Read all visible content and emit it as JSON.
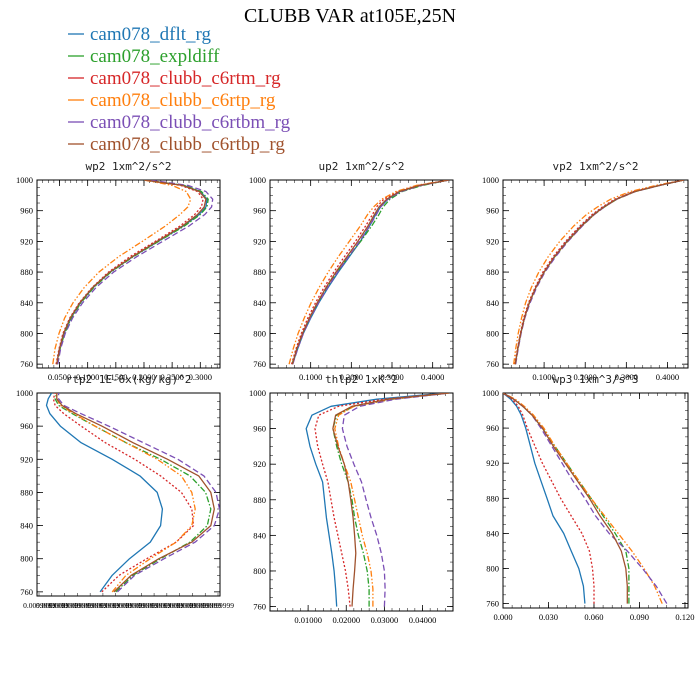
{
  "title": "CLUBB VAR at105E,25N",
  "legend": [
    {
      "name": "cam078_dflt_rg",
      "color": "#1f77b4",
      "dash": "solid"
    },
    {
      "name": "cam078_expldiff",
      "color": "#2ca02c",
      "dash": "dashdot"
    },
    {
      "name": "cam078_clubb_c6rtm_rg",
      "color": "#d62728",
      "dash": "dotted"
    },
    {
      "name": "cam078_clubb_c6rtp_rg",
      "color": "#ff7f0e",
      "dash": "dashdotdot"
    },
    {
      "name": "cam078_clubb_c6rtbm_rg",
      "color": "#7b4fb5",
      "dash": "dashed"
    },
    {
      "name": "cam078_clubb_c6rtbp_rg",
      "color": "#a0522d",
      "dash": "solid"
    }
  ],
  "chart_data": [
    {
      "type": "line",
      "title": "wp2  1xm^2/s^2",
      "xlim": [
        0.01,
        0.335
      ],
      "ylim": [
        1000,
        755
      ],
      "xticks": [
        0.05,
        0.1,
        0.15,
        0.2,
        0.25,
        0.3
      ],
      "xticklabels": [
        "0.0500",
        "0.1000",
        "0.1500",
        "0.2000",
        "0.2500",
        "0.3000"
      ],
      "yticks": [
        760,
        800,
        840,
        880,
        920,
        960,
        1000
      ],
      "y": [
        760,
        780,
        800,
        820,
        840,
        860,
        880,
        900,
        920,
        940,
        955,
        965,
        975,
        985,
        993,
        1000
      ],
      "series": [
        {
          "name": "cam078_dflt_rg",
          "x": [
            0.045,
            0.05,
            0.058,
            0.07,
            0.087,
            0.11,
            0.14,
            0.18,
            0.225,
            0.27,
            0.298,
            0.31,
            0.312,
            0.3,
            0.27,
            0.2
          ]
        },
        {
          "name": "cam078_expldiff",
          "x": [
            0.046,
            0.051,
            0.059,
            0.071,
            0.088,
            0.111,
            0.141,
            0.181,
            0.226,
            0.272,
            0.3,
            0.312,
            0.314,
            0.302,
            0.272,
            0.2
          ]
        },
        {
          "name": "cam078_clubb_c6rtm_rg",
          "x": [
            0.044,
            0.049,
            0.056,
            0.068,
            0.085,
            0.108,
            0.137,
            0.175,
            0.22,
            0.264,
            0.29,
            0.302,
            0.305,
            0.295,
            0.265,
            0.2
          ]
        },
        {
          "name": "cam078_clubb_c6rtp_rg",
          "x": [
            0.038,
            0.042,
            0.049,
            0.059,
            0.074,
            0.094,
            0.12,
            0.155,
            0.197,
            0.238,
            0.264,
            0.278,
            0.283,
            0.275,
            0.25,
            0.2
          ]
        },
        {
          "name": "cam078_clubb_c6rtbm_rg",
          "x": [
            0.047,
            0.052,
            0.06,
            0.073,
            0.091,
            0.115,
            0.146,
            0.187,
            0.233,
            0.28,
            0.308,
            0.32,
            0.322,
            0.31,
            0.278,
            0.21
          ]
        },
        {
          "name": "cam078_clubb_c6rtbp_rg",
          "x": [
            0.045,
            0.05,
            0.057,
            0.069,
            0.086,
            0.109,
            0.139,
            0.179,
            0.223,
            0.268,
            0.295,
            0.307,
            0.31,
            0.298,
            0.268,
            0.2
          ]
        }
      ]
    },
    {
      "type": "line",
      "title": "up2  1xm^2/s^2",
      "xlim": [
        0.0,
        0.45
      ],
      "ylim": [
        1000,
        755
      ],
      "xticks": [
        0.1,
        0.2,
        0.3,
        0.4
      ],
      "xticklabels": [
        "0.1000",
        "0.2000",
        "0.3000",
        "0.4000"
      ],
      "yticks": [
        760,
        800,
        840,
        880,
        920,
        960,
        1000
      ],
      "y": [
        760,
        780,
        800,
        820,
        840,
        860,
        880,
        900,
        920,
        940,
        955,
        965,
        975,
        985,
        993,
        1000
      ],
      "series": [
        {
          "name": "cam078_dflt_rg",
          "x": [
            0.055,
            0.068,
            0.082,
            0.1,
            0.12,
            0.143,
            0.168,
            0.195,
            0.222,
            0.245,
            0.26,
            0.272,
            0.29,
            0.32,
            0.37,
            0.44
          ]
        },
        {
          "name": "cam078_expldiff",
          "x": [
            0.054,
            0.066,
            0.08,
            0.097,
            0.117,
            0.14,
            0.165,
            0.193,
            0.223,
            0.25,
            0.268,
            0.278,
            0.295,
            0.325,
            0.375,
            0.44
          ]
        },
        {
          "name": "cam078_clubb_c6rtm_rg",
          "x": [
            0.053,
            0.064,
            0.077,
            0.093,
            0.112,
            0.133,
            0.157,
            0.183,
            0.21,
            0.235,
            0.252,
            0.262,
            0.28,
            0.315,
            0.365,
            0.44
          ]
        },
        {
          "name": "cam078_clubb_c6rtp_rg",
          "x": [
            0.047,
            0.057,
            0.069,
            0.084,
            0.101,
            0.121,
            0.143,
            0.168,
            0.195,
            0.222,
            0.24,
            0.255,
            0.275,
            0.31,
            0.36,
            0.44
          ]
        },
        {
          "name": "cam078_clubb_c6rtbm_rg",
          "x": [
            0.056,
            0.068,
            0.082,
            0.099,
            0.119,
            0.142,
            0.166,
            0.193,
            0.22,
            0.245,
            0.262,
            0.272,
            0.29,
            0.322,
            0.372,
            0.44
          ]
        },
        {
          "name": "cam078_clubb_c6rtbp_rg",
          "x": [
            0.055,
            0.066,
            0.08,
            0.097,
            0.116,
            0.138,
            0.162,
            0.189,
            0.216,
            0.241,
            0.257,
            0.268,
            0.287,
            0.318,
            0.368,
            0.44
          ]
        }
      ]
    },
    {
      "type": "line",
      "title": "vp2  1xm^2/s^2",
      "xlim": [
        0.0,
        0.45
      ],
      "ylim": [
        1000,
        755
      ],
      "xticks": [
        0.1,
        0.2,
        0.3,
        0.4
      ],
      "xticklabels": [
        "0.1000",
        "0.2000",
        "0.3000",
        "0.4000"
      ],
      "yticks": [
        760,
        800,
        840,
        880,
        920,
        960,
        1000
      ],
      "y": [
        760,
        780,
        800,
        820,
        840,
        860,
        880,
        900,
        920,
        940,
        955,
        965,
        975,
        985,
        993,
        1000
      ],
      "series": [
        {
          "name": "cam078_dflt_rg",
          "x": [
            0.03,
            0.036,
            0.043,
            0.052,
            0.064,
            0.08,
            0.1,
            0.125,
            0.155,
            0.19,
            0.22,
            0.245,
            0.275,
            0.32,
            0.38,
            0.44
          ]
        },
        {
          "name": "cam078_expldiff",
          "x": [
            0.03,
            0.036,
            0.043,
            0.052,
            0.064,
            0.08,
            0.1,
            0.126,
            0.157,
            0.192,
            0.222,
            0.247,
            0.277,
            0.322,
            0.382,
            0.44
          ]
        },
        {
          "name": "cam078_clubb_c6rtm_rg",
          "x": [
            0.029,
            0.035,
            0.042,
            0.05,
            0.062,
            0.078,
            0.097,
            0.122,
            0.152,
            0.187,
            0.217,
            0.242,
            0.272,
            0.318,
            0.378,
            0.44
          ]
        },
        {
          "name": "cam078_clubb_c6rtp_rg",
          "x": [
            0.026,
            0.031,
            0.037,
            0.045,
            0.055,
            0.069,
            0.087,
            0.11,
            0.138,
            0.172,
            0.203,
            0.23,
            0.262,
            0.31,
            0.372,
            0.44
          ]
        },
        {
          "name": "cam078_clubb_c6rtbm_rg",
          "x": [
            0.031,
            0.037,
            0.044,
            0.053,
            0.066,
            0.082,
            0.102,
            0.128,
            0.158,
            0.193,
            0.222,
            0.247,
            0.277,
            0.322,
            0.382,
            0.44
          ]
        },
        {
          "name": "cam078_clubb_c6rtbp_rg",
          "x": [
            0.03,
            0.036,
            0.043,
            0.052,
            0.064,
            0.08,
            0.1,
            0.125,
            0.156,
            0.191,
            0.221,
            0.246,
            0.276,
            0.321,
            0.381,
            0.44
          ]
        }
      ]
    },
    {
      "type": "line",
      "title": "rtp2  1E-6x(kg/kg)^2",
      "xlim": [
        0.0099999,
        0.00999999
      ],
      "ylim": [
        1000,
        755
      ],
      "xticklabels": [
        "0.0099999",
        "0.0099999",
        "0.0099999",
        "0.0099999",
        "0.0099999",
        "0.0099999",
        "0.0099999",
        "0.0099999",
        "0.0099999",
        "0.0099999",
        "0.0099999",
        "0.0099999",
        "0.0099999",
        "0.0099999",
        "0.0099999"
      ],
      "yticks": [
        760,
        800,
        840,
        880,
        920,
        960,
        1000
      ],
      "y": [
        760,
        780,
        800,
        820,
        840,
        860,
        880,
        900,
        920,
        940,
        960,
        975,
        985,
        993,
        1000
      ],
      "series": [
        {
          "name": "cam078_dflt_rg",
          "x": [
            0.33,
            0.4,
            0.5,
            0.62,
            0.68,
            0.69,
            0.66,
            0.56,
            0.4,
            0.22,
            0.1,
            0.04,
            0.02,
            0.03,
            0.05
          ]
        },
        {
          "name": "cam078_expldiff",
          "x": [
            0.42,
            0.52,
            0.68,
            0.85,
            0.95,
            0.97,
            0.94,
            0.85,
            0.68,
            0.48,
            0.3,
            0.17,
            0.09,
            0.07,
            0.08
          ]
        },
        {
          "name": "cam078_clubb_c6rtm_rg",
          "x": [
            0.34,
            0.44,
            0.6,
            0.77,
            0.87,
            0.86,
            0.8,
            0.68,
            0.53,
            0.36,
            0.22,
            0.12,
            0.07,
            0.06,
            0.07
          ]
        },
        {
          "name": "cam078_clubb_c6rtp_rg",
          "x": [
            0.4,
            0.48,
            0.62,
            0.77,
            0.86,
            0.88,
            0.86,
            0.8,
            0.66,
            0.48,
            0.3,
            0.18,
            0.1,
            0.08,
            0.08
          ]
        },
        {
          "name": "cam078_clubb_c6rtbm_rg",
          "x": [
            0.43,
            0.53,
            0.7,
            0.88,
            0.99,
            1.02,
            1.0,
            0.93,
            0.78,
            0.58,
            0.38,
            0.22,
            0.12,
            0.09,
            0.09
          ]
        },
        {
          "name": "cam078_clubb_c6rtbp_rg",
          "x": [
            0.41,
            0.51,
            0.67,
            0.86,
            0.97,
            0.99,
            0.97,
            0.9,
            0.72,
            0.52,
            0.34,
            0.19,
            0.11,
            0.08,
            0.08
          ]
        }
      ]
    },
    {
      "type": "line",
      "title": "thlp2  1xK^2",
      "xlim": [
        0.0,
        0.048
      ],
      "ylim": [
        1000,
        755
      ],
      "xticks": [
        0.01,
        0.02,
        0.03,
        0.04
      ],
      "xticklabels": [
        "0.01000",
        "0.02000",
        "0.03000",
        "0.04000"
      ],
      "yticks": [
        760,
        800,
        840,
        880,
        920,
        960,
        1000
      ],
      "y": [
        760,
        780,
        800,
        820,
        840,
        860,
        880,
        900,
        920,
        940,
        960,
        975,
        985,
        993,
        1000
      ],
      "series": [
        {
          "name": "cam078_dflt_rg",
          "x": [
            0.0175,
            0.0172,
            0.0168,
            0.0162,
            0.0155,
            0.0148,
            0.0143,
            0.0138,
            0.012,
            0.0105,
            0.0095,
            0.011,
            0.016,
            0.028,
            0.046
          ]
        },
        {
          "name": "cam078_expldiff",
          "x": [
            0.026,
            0.026,
            0.0255,
            0.0245,
            0.0232,
            0.0222,
            0.0215,
            0.0205,
            0.0188,
            0.0175,
            0.0165,
            0.0175,
            0.022,
            0.032,
            0.047
          ]
        },
        {
          "name": "cam078_clubb_c6rtm_rg",
          "x": [
            0.021,
            0.0205,
            0.0198,
            0.0188,
            0.0178,
            0.0168,
            0.016,
            0.0152,
            0.0138,
            0.0125,
            0.0118,
            0.0128,
            0.018,
            0.03,
            0.047
          ]
        },
        {
          "name": "cam078_clubb_c6rtp_rg",
          "x": [
            0.027,
            0.027,
            0.0265,
            0.0255,
            0.0242,
            0.0232,
            0.0222,
            0.0212,
            0.0195,
            0.018,
            0.017,
            0.018,
            0.022,
            0.032,
            0.047
          ]
        },
        {
          "name": "cam078_clubb_c6rtbm_rg",
          "x": [
            0.03,
            0.0302,
            0.03,
            0.0292,
            0.028,
            0.0265,
            0.0252,
            0.024,
            0.022,
            0.0202,
            0.019,
            0.0195,
            0.0235,
            0.033,
            0.047
          ]
        },
        {
          "name": "cam078_clubb_c6rtbp_rg",
          "x": [
            0.0215,
            0.0218,
            0.0222,
            0.0225,
            0.0222,
            0.0218,
            0.0212,
            0.0205,
            0.0195,
            0.0178,
            0.0165,
            0.0172,
            0.0215,
            0.031,
            0.047
          ]
        }
      ]
    },
    {
      "type": "line",
      "title": "wp3  1xm^3/s^3",
      "xlim": [
        0.0,
        0.122
      ],
      "ylim": [
        1000,
        755
      ],
      "xticks": [
        0.0,
        0.03,
        0.06,
        0.09,
        0.12
      ],
      "xticklabels": [
        "0.000",
        "0.030",
        "0.060",
        "0.090",
        "0.120"
      ],
      "yticks": [
        760,
        800,
        840,
        880,
        920,
        960,
        1000
      ],
      "y": [
        760,
        780,
        800,
        820,
        840,
        860,
        880,
        900,
        920,
        940,
        960,
        975,
        985,
        993,
        1000
      ],
      "series": [
        {
          "name": "cam078_dflt_rg",
          "x": [
            0.054,
            0.053,
            0.05,
            0.045,
            0.04,
            0.033,
            0.029,
            0.025,
            0.021,
            0.018,
            0.015,
            0.012,
            0.009,
            0.005,
            0.0
          ]
        },
        {
          "name": "cam078_expldiff",
          "x": [
            0.083,
            0.083,
            0.083,
            0.081,
            0.074,
            0.066,
            0.058,
            0.05,
            0.042,
            0.034,
            0.026,
            0.019,
            0.013,
            0.007,
            0.0
          ]
        },
        {
          "name": "cam078_clubb_c6rtm_rg",
          "x": [
            0.06,
            0.06,
            0.059,
            0.057,
            0.052,
            0.045,
            0.038,
            0.032,
            0.026,
            0.021,
            0.016,
            0.013,
            0.01,
            0.006,
            0.0
          ]
        },
        {
          "name": "cam078_clubb_c6rtp_rg",
          "x": [
            0.105,
            0.1,
            0.093,
            0.085,
            0.076,
            0.067,
            0.058,
            0.05,
            0.042,
            0.034,
            0.027,
            0.02,
            0.014,
            0.008,
            0.0
          ]
        },
        {
          "name": "cam078_clubb_c6rtbm_rg",
          "x": [
            0.108,
            0.101,
            0.092,
            0.082,
            0.07,
            0.061,
            0.054,
            0.046,
            0.039,
            0.032,
            0.025,
            0.019,
            0.013,
            0.007,
            0.0
          ]
        },
        {
          "name": "cam078_clubb_c6rtbp_rg",
          "x": [
            0.082,
            0.082,
            0.081,
            0.078,
            0.072,
            0.064,
            0.057,
            0.049,
            0.041,
            0.033,
            0.026,
            0.019,
            0.013,
            0.007,
            0.0
          ]
        }
      ]
    }
  ]
}
